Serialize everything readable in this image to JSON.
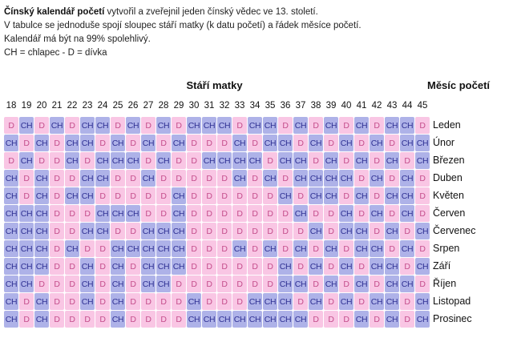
{
  "intro": {
    "line1_bold": "Čínský kalendář početí",
    "line1_rest": " vytvořil a zveřejnil jeden čínský vědec ve 13. století.",
    "line2": "V tabulce se jednoduše spojí sloupec stáří matky (k datu početí) a řádek měsíce početí.",
    "line3": "Kalendář má být na 99% spolehlivý.",
    "line4": "CH = chlapec - D = dívka"
  },
  "table": {
    "col_title": "Stáří matky",
    "row_title": "Měsíc početí",
    "boy_label": "CH",
    "girl_label": "D",
    "ages": [
      18,
      19,
      20,
      21,
      22,
      23,
      24,
      25,
      26,
      27,
      28,
      29,
      30,
      31,
      32,
      33,
      34,
      35,
      36,
      37,
      38,
      39,
      40,
      41,
      42,
      43,
      44,
      45
    ],
    "rows": [
      {
        "month": "Leden",
        "cells": [
          "D",
          "CH",
          "D",
          "CH",
          "D",
          "CH",
          "CH",
          "D",
          "CH",
          "D",
          "CH",
          "D",
          "CH",
          "CH",
          "CH",
          "D",
          "CH",
          "CH",
          "D",
          "CH",
          "D",
          "CH",
          "D",
          "CH",
          "D",
          "CH",
          "CH",
          "D"
        ]
      },
      {
        "month": "Únor",
        "cells": [
          "CH",
          "D",
          "CH",
          "D",
          "CH",
          "CH",
          "D",
          "CH",
          "D",
          "CH",
          "D",
          "CH",
          "D",
          "D",
          "D",
          "CH",
          "D",
          "CH",
          "CH",
          "D",
          "CH",
          "D",
          "CH",
          "D",
          "CH",
          "D",
          "CH",
          "CH"
        ]
      },
      {
        "month": "Březen",
        "cells": [
          "D",
          "CH",
          "D",
          "D",
          "CH",
          "D",
          "CH",
          "CH",
          "CH",
          "D",
          "CH",
          "D",
          "D",
          "CH",
          "CH",
          "CH",
          "CH",
          "D",
          "CH",
          "CH",
          "D",
          "CH",
          "D",
          "CH",
          "D",
          "CH",
          "D",
          "CH"
        ]
      },
      {
        "month": "Duben",
        "cells": [
          "CH",
          "D",
          "CH",
          "D",
          "D",
          "CH",
          "CH",
          "D",
          "D",
          "CH",
          "D",
          "D",
          "D",
          "D",
          "D",
          "CH",
          "D",
          "CH",
          "D",
          "CH",
          "CH",
          "CH",
          "CH",
          "D",
          "CH",
          "D",
          "CH",
          "D"
        ]
      },
      {
        "month": "Květen",
        "cells": [
          "CH",
          "D",
          "CH",
          "D",
          "CH",
          "CH",
          "D",
          "D",
          "D",
          "D",
          "D",
          "CH",
          "D",
          "D",
          "D",
          "D",
          "D",
          "D",
          "CH",
          "D",
          "CH",
          "CH",
          "D",
          "CH",
          "D",
          "CH",
          "CH",
          "D"
        ]
      },
      {
        "month": "Červen",
        "cells": [
          "CH",
          "CH",
          "CH",
          "D",
          "D",
          "D",
          "CH",
          "CH",
          "CH",
          "D",
          "D",
          "CH",
          "D",
          "D",
          "D",
          "D",
          "D",
          "D",
          "D",
          "CH",
          "D",
          "D",
          "CH",
          "D",
          "CH",
          "D",
          "CH",
          "D"
        ]
      },
      {
        "month": "Červenec",
        "cells": [
          "CH",
          "CH",
          "CH",
          "D",
          "D",
          "CH",
          "CH",
          "D",
          "D",
          "CH",
          "CH",
          "CH",
          "D",
          "D",
          "D",
          "D",
          "D",
          "D",
          "D",
          "D",
          "CH",
          "D",
          "CH",
          "CH",
          "D",
          "CH",
          "D",
          "CH"
        ]
      },
      {
        "month": "Srpen",
        "cells": [
          "CH",
          "CH",
          "CH",
          "D",
          "CH",
          "D",
          "D",
          "CH",
          "CH",
          "CH",
          "CH",
          "CH",
          "D",
          "D",
          "D",
          "CH",
          "D",
          "CH",
          "D",
          "CH",
          "D",
          "CH",
          "D",
          "CH",
          "CH",
          "D",
          "CH",
          "D"
        ]
      },
      {
        "month": "Září",
        "cells": [
          "CH",
          "CH",
          "CH",
          "D",
          "D",
          "CH",
          "D",
          "CH",
          "D",
          "CH",
          "CH",
          "CH",
          "D",
          "D",
          "D",
          "D",
          "D",
          "D",
          "CH",
          "D",
          "CH",
          "D",
          "CH",
          "D",
          "CH",
          "CH",
          "D",
          "CH"
        ]
      },
      {
        "month": "Říjen",
        "cells": [
          "CH",
          "CH",
          "D",
          "D",
          "D",
          "CH",
          "D",
          "CH",
          "D",
          "CH",
          "CH",
          "D",
          "D",
          "D",
          "D",
          "D",
          "D",
          "D",
          "CH",
          "CH",
          "D",
          "CH",
          "D",
          "CH",
          "D",
          "CH",
          "CH",
          "D"
        ]
      },
      {
        "month": "Listopad",
        "cells": [
          "CH",
          "D",
          "CH",
          "D",
          "D",
          "CH",
          "D",
          "CH",
          "D",
          "D",
          "D",
          "D",
          "CH",
          "D",
          "D",
          "D",
          "CH",
          "CH",
          "CH",
          "D",
          "CH",
          "D",
          "CH",
          "D",
          "CH",
          "CH",
          "D",
          "CH"
        ]
      },
      {
        "month": "Prosinec",
        "cells": [
          "CH",
          "D",
          "CH",
          "D",
          "D",
          "D",
          "D",
          "CH",
          "D",
          "D",
          "D",
          "D",
          "CH",
          "CH",
          "CH",
          "CH",
          "CH",
          "CH",
          "CH",
          "CH",
          "D",
          "D",
          "D",
          "CH",
          "D",
          "CH",
          "D",
          "CH"
        ]
      }
    ]
  },
  "colors": {
    "boy_bg": "#aeb2e8",
    "boy_text": "#2f3193",
    "girl_bg": "#f9c6e4",
    "girl_text": "#c44d8b"
  }
}
